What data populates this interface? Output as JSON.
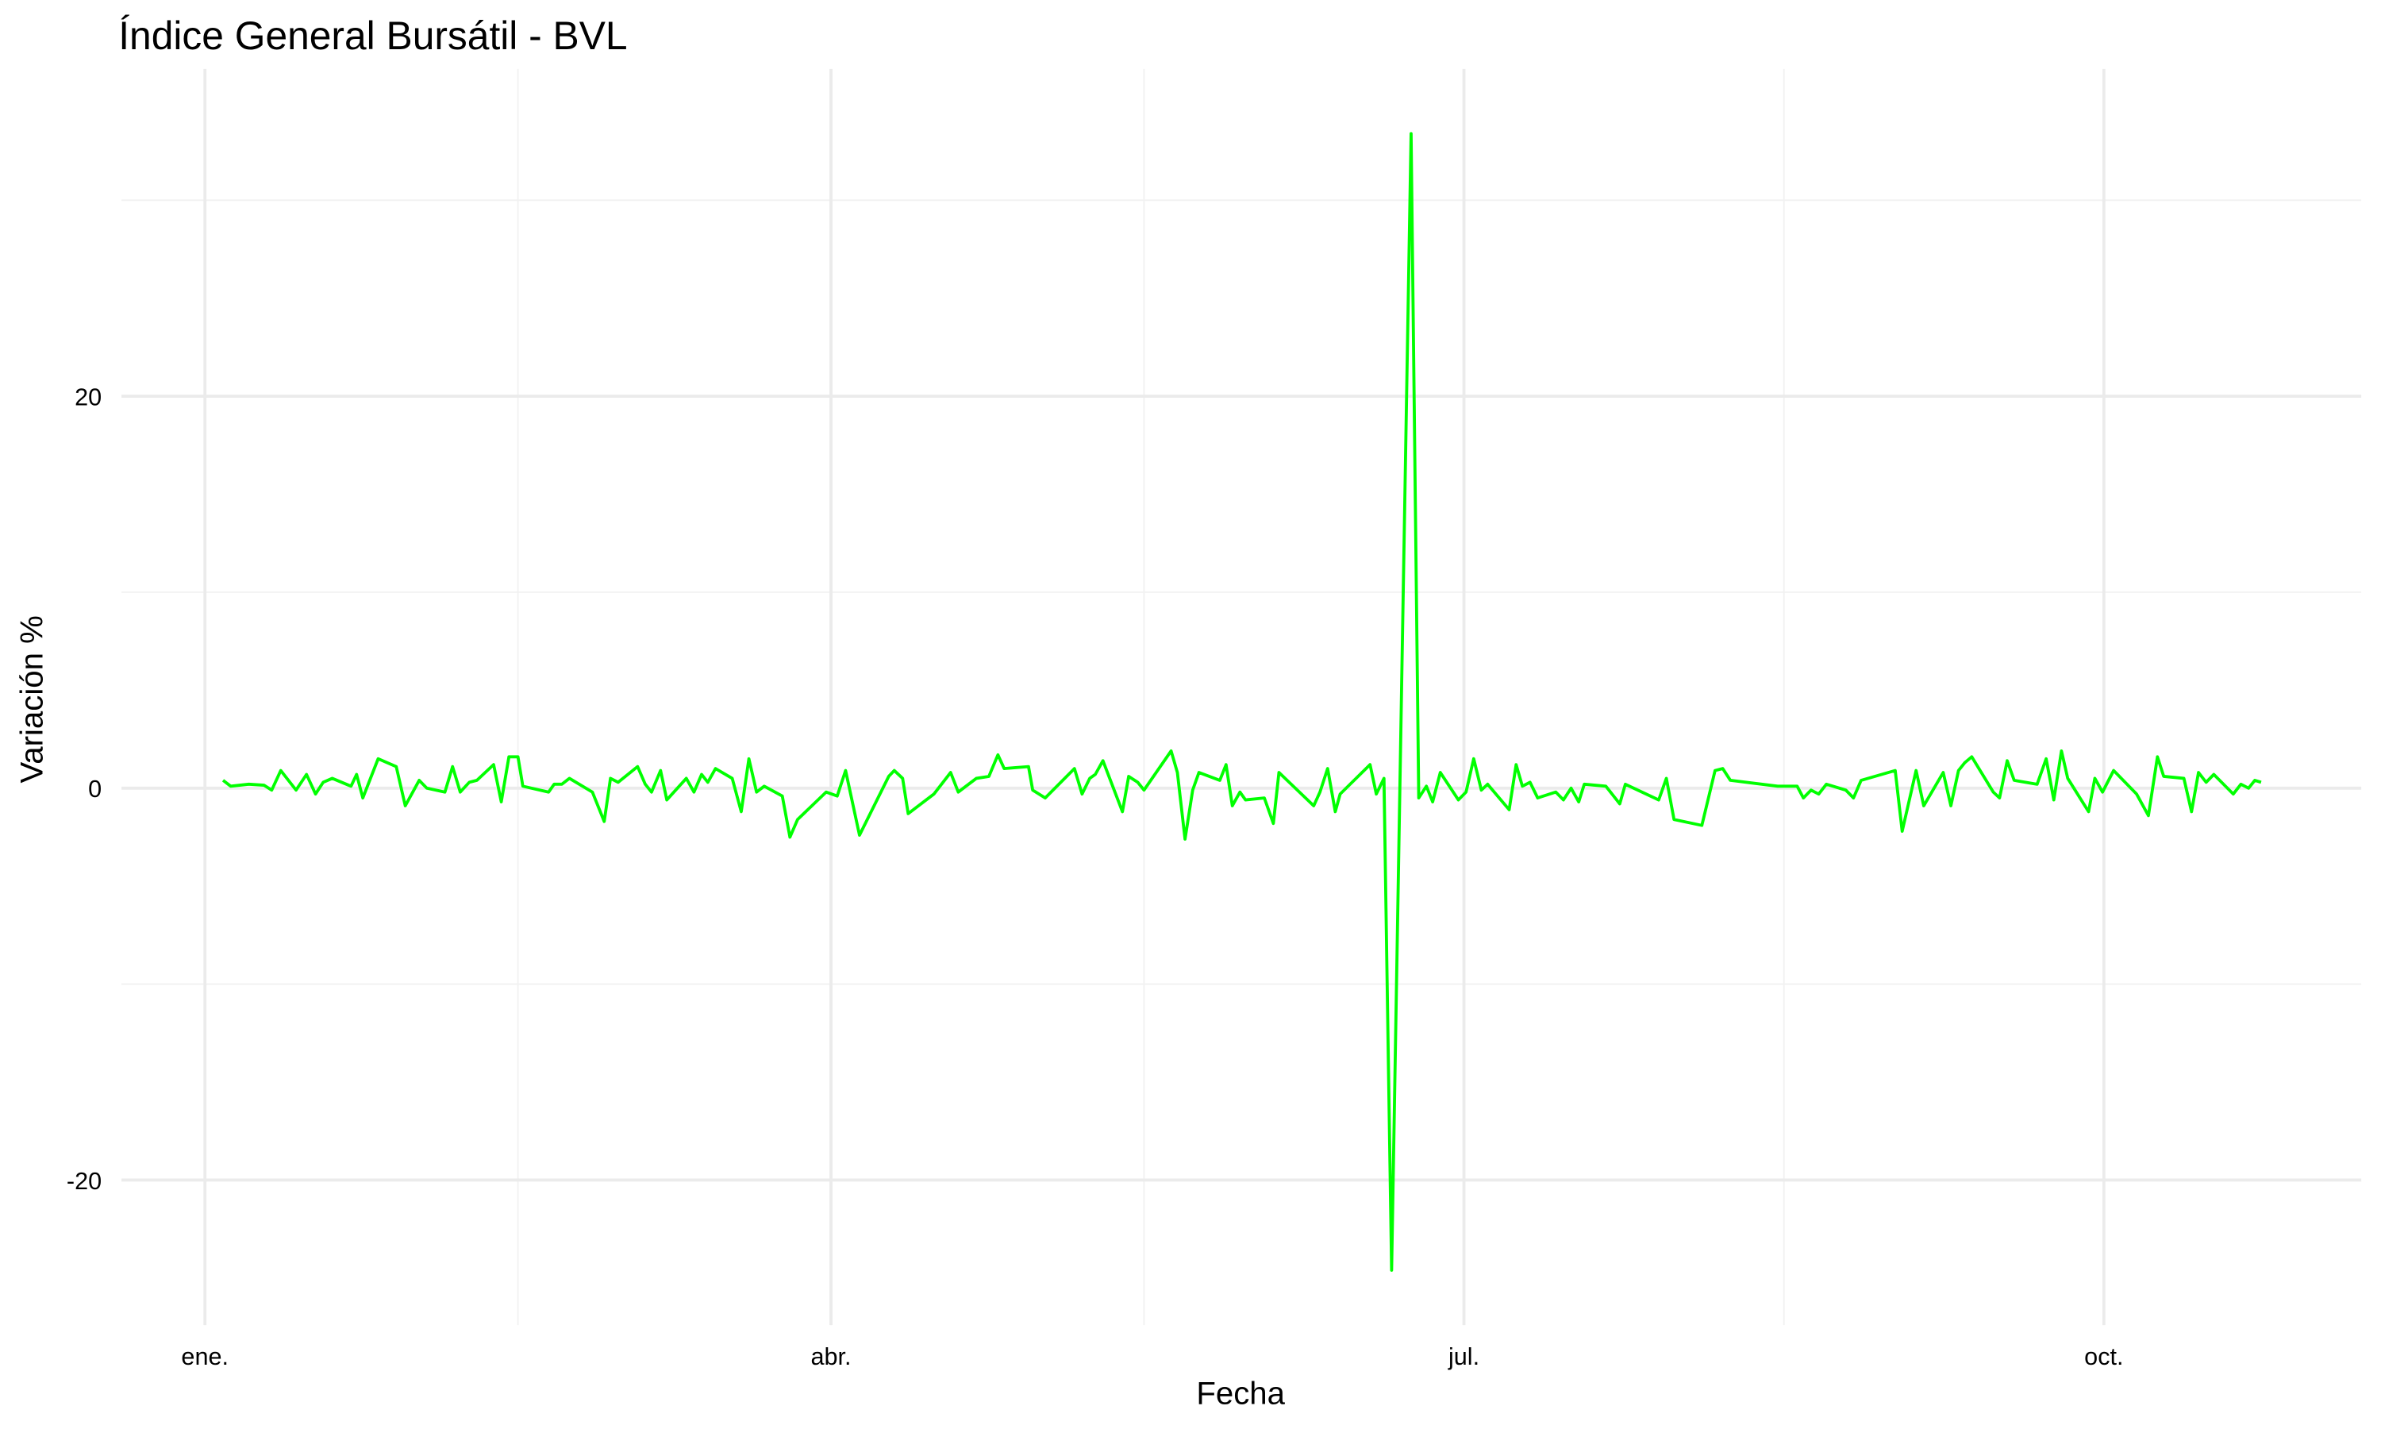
{
  "chart_data": {
    "type": "line",
    "title": "Índice General Bursátil - BVL",
    "x_label": "Fecha",
    "y_label": "Variación %",
    "xlim": [
      -12,
      310
    ],
    "ylim": [
      -27.4,
      36.7
    ],
    "xticks": [
      {
        "value": 0,
        "label": "ene."
      },
      {
        "value": 90,
        "label": "abr."
      },
      {
        "value": 181,
        "label": "jul."
      },
      {
        "value": 273,
        "label": "oct."
      }
    ],
    "minor_xticks": [
      45,
      135,
      227
    ],
    "yticks": [
      -20,
      0,
      20
    ],
    "minor_yticks": [
      -10,
      10,
      30
    ],
    "grid": true,
    "series": [
      {
        "name": "Variación %",
        "color": "#00ff00",
        "x": [
          2.6,
          3.7,
          6.3,
          8.5,
          9.6,
          10.9,
          13.1,
          14.6,
          15.9,
          17,
          18.3,
          21,
          21.8,
          22.7,
          24.9,
          27.5,
          28.8,
          30.8,
          31.9,
          34.5,
          35.6,
          36.7,
          38,
          39.1,
          41.5,
          42.6,
          43.7,
          45,
          45.7,
          49.4,
          50.2,
          51.3,
          52.4,
          55.7,
          57.4,
          58.3,
          59.4,
          62.2,
          63.3,
          64.2,
          65.5,
          66.4,
          69.2,
          70.3,
          71.4,
          72.3,
          73.4,
          75.8,
          77.1,
          78.2,
          79.3,
          80.4,
          83,
          84.1,
          85.2,
          89.3,
          90.9,
          92.1,
          94.1,
          96.9,
          98.3,
          99.1,
          100.3,
          101.1,
          104.8,
          107.2,
          108.3,
          110.9,
          112.7,
          114,
          114.9,
          118.4,
          119,
          120.8,
          125,
          126.1,
          127.2,
          128,
          129.1,
          131.9,
          132.8,
          134.1,
          135,
          138.9,
          139.8,
          140.9,
          142,
          142.9,
          145.9,
          146.8,
          147.7,
          148.8,
          149.6,
          152.3,
          153.6,
          154.4,
          159.4,
          160.3,
          161.4,
          162.5,
          163.2,
          167.5,
          168.4,
          169.5,
          170.6,
          173.4,
          174.5,
          175.6,
          176.5,
          177.6,
          180.2,
          181.3,
          182.4,
          183.5,
          184.4,
          187.5,
          188.5,
          189.4,
          190.5,
          191.6,
          194.2,
          195.3,
          196.4,
          197.5,
          198.3,
          201.4,
          203.4,
          204.2,
          209,
          210.1,
          211.2,
          215.2,
          217.1,
          218.2,
          219.3,
          226.1,
          228.9,
          229.8,
          230.9,
          232,
          233.1,
          235.9,
          237,
          238.1,
          243,
          244,
          246,
          247.1,
          249.9,
          251,
          252.1,
          253,
          254,
          257.1,
          258,
          259.1,
          260.1,
          263.4,
          264.7,
          265.8,
          266.9,
          267.8,
          270.8,
          271.7,
          272.8,
          274.4,
          277.7,
          279.4,
          280.7,
          281.6,
          284.5,
          285.6,
          286.6,
          287.7,
          288.8,
          291.6,
          292.7,
          293.8,
          294.7,
          295.6
        ],
        "values": [
          0.4,
          0.1,
          0.2,
          0.15,
          -0.1,
          0.9,
          -0.1,
          0.7,
          -0.3,
          0.3,
          0.5,
          0.1,
          0.7,
          -0.5,
          1.5,
          1.1,
          -0.9,
          0.4,
          0,
          -0.2,
          1.1,
          -0.2,
          0.3,
          0.4,
          1.2,
          -0.7,
          1.6,
          1.6,
          0.1,
          -0.2,
          0.2,
          0.2,
          0.5,
          -0.2,
          -1.7,
          0.5,
          0.3,
          1.1,
          0.2,
          -0.2,
          0.9,
          -0.6,
          0.5,
          -0.2,
          0.7,
          0.3,
          1,
          0.5,
          -1.2,
          1.5,
          -0.2,
          0.1,
          -0.4,
          -2.5,
          -1.6,
          -0.2,
          -0.4,
          0.9,
          -2.4,
          -0.4,
          0.6,
          0.9,
          0.5,
          -1.3,
          -0.3,
          0.8,
          -0.2,
          0.5,
          0.6,
          1.7,
          1,
          1.1,
          -0.1,
          -0.5,
          1,
          -0.3,
          0.5,
          0.7,
          1.4,
          -1.2,
          0.6,
          0.3,
          -0.1,
          1.9,
          0.8,
          -2.6,
          -0.1,
          0.8,
          0.4,
          1.2,
          -0.9,
          -0.2,
          -0.6,
          -0.5,
          -1.8,
          0.8,
          -0.9,
          -0.2,
          1,
          -1.2,
          -0.3,
          1.2,
          -0.3,
          0.5,
          -24.6,
          33.4,
          -0.5,
          0.1,
          -0.7,
          0.8,
          -0.6,
          -0.2,
          1.5,
          -0.1,
          0.2,
          -1.1,
          1.2,
          0.1,
          0.3,
          -0.5,
          -0.2,
          -0.6,
          0,
          -0.7,
          0.2,
          0.1,
          -0.8,
          0.2,
          -0.6,
          0.5,
          -1.6,
          -1.9,
          0.9,
          1,
          0.4,
          0.1,
          0.1,
          -0.5,
          -0.1,
          -0.3,
          0.2,
          -0.1,
          -0.5,
          0.4,
          0.9,
          -2.2,
          0.9,
          -0.9,
          0.8,
          -0.9,
          0.9,
          1.3,
          1.6,
          -0.2,
          -0.5,
          1.4,
          0.4,
          0.2,
          1.5,
          -0.6,
          1.9,
          0.5,
          -1.2,
          0.5,
          -0.2,
          0.9,
          -0.3,
          -1.4,
          1.6,
          0.6,
          0.5,
          -1.2,
          0.8,
          0.3,
          0.7,
          -0.3,
          0.2,
          0,
          0.4,
          0.3
        ]
      }
    ]
  }
}
